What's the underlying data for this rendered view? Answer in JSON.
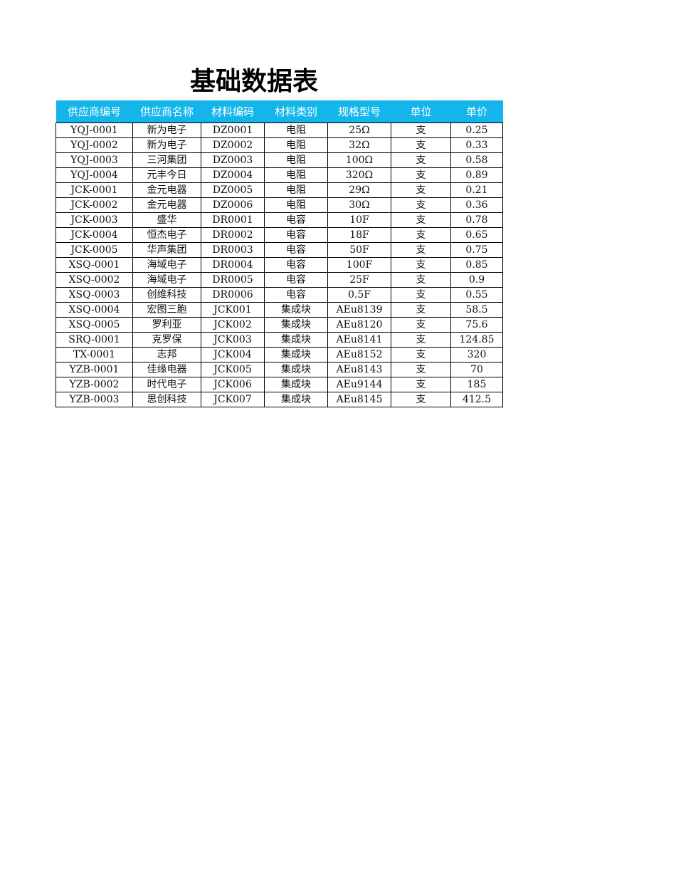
{
  "title": "基础数据表",
  "header_color": "#13b5ea",
  "columns": [
    "供应商编号",
    "供应商名称",
    "材料编码",
    "材料类别",
    "规格型号",
    "单位",
    "单价"
  ],
  "rows": [
    [
      "YQJ-0001",
      "新为电子",
      "DZ0001",
      "电阻",
      "25Ω",
      "支",
      "0.25"
    ],
    [
      "YQJ-0002",
      "新为电子",
      "DZ0002",
      "电阻",
      "32Ω",
      "支",
      "0.33"
    ],
    [
      "YQJ-0003",
      "三河集团",
      "DZ0003",
      "电阻",
      "100Ω",
      "支",
      "0.58"
    ],
    [
      "YQJ-0004",
      "元丰今日",
      "DZ0004",
      "电阻",
      "320Ω",
      "支",
      "0.89"
    ],
    [
      "JCK-0001",
      "金元电器",
      "DZ0005",
      "电阻",
      "29Ω",
      "支",
      "0.21"
    ],
    [
      "JCK-0002",
      "金元电器",
      "DZ0006",
      "电阻",
      "30Ω",
      "支",
      "0.36"
    ],
    [
      "JCK-0003",
      "盛华",
      "DR0001",
      "电容",
      "10F",
      "支",
      "0.78"
    ],
    [
      "JCK-0004",
      "恒杰电子",
      "DR0002",
      "电容",
      "18F",
      "支",
      "0.65"
    ],
    [
      "JCK-0005",
      "华声集团",
      "DR0003",
      "电容",
      "50F",
      "支",
      "0.75"
    ],
    [
      "XSQ-0001",
      "海域电子",
      "DR0004",
      "电容",
      "100F",
      "支",
      "0.85"
    ],
    [
      "XSQ-0002",
      "海域电子",
      "DR0005",
      "电容",
      "25F",
      "支",
      "0.9"
    ],
    [
      "XSQ-0003",
      "创维科技",
      "DR0006",
      "电容",
      "0.5F",
      "支",
      "0.55"
    ],
    [
      "XSQ-0004",
      "宏图三胞",
      "JCK001",
      "集成块",
      "AEu8139",
      "支",
      "58.5"
    ],
    [
      "XSQ-0005",
      "罗利亚",
      "JCK002",
      "集成块",
      "AEu8120",
      "支",
      "75.6"
    ],
    [
      "SRQ-0001",
      "克罗保",
      "JCK003",
      "集成块",
      "AEu8141",
      "支",
      "124.85"
    ],
    [
      "TX-0001",
      "志邦",
      "JCK004",
      "集成块",
      "AEu8152",
      "支",
      "320"
    ],
    [
      "YZB-0001",
      "佳缘电器",
      "JCK005",
      "集成块",
      "AEu8143",
      "支",
      "70"
    ],
    [
      "YZB-0002",
      "时代电子",
      "JCK006",
      "集成块",
      "AEu9144",
      "支",
      "185"
    ],
    [
      "YZB-0003",
      "思创科技",
      "JCK007",
      "集成块",
      "AEu8145",
      "支",
      "412.5"
    ]
  ]
}
